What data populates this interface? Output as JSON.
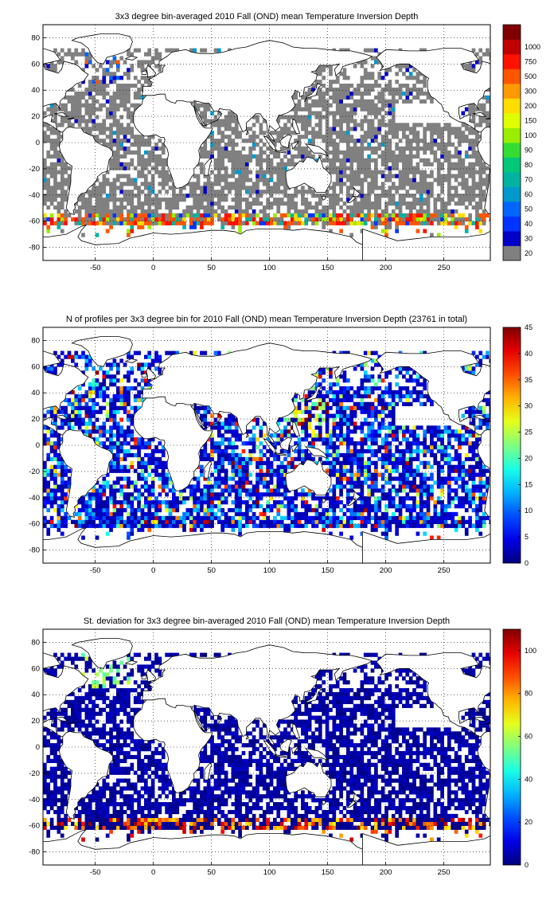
{
  "figure": {
    "panels": [
      {
        "id": "depth",
        "title": "3x3 degree bin-averaged 2010 Fall (OND) mean Temperature Inversion Depth",
        "colorbar": {
          "type": "discrete",
          "labels": [
            "20",
            "30",
            "40",
            "50",
            "60",
            "70",
            "80",
            "90",
            "100",
            "150",
            "200",
            "300",
            "500",
            "750",
            "1000"
          ],
          "colors": [
            "#808080",
            "#0000c8",
            "#0033ff",
            "#0066ff",
            "#0099cc",
            "#00b3a0",
            "#00c878",
            "#33dd33",
            "#99ee00",
            "#ddff00",
            "#ffdd00",
            "#ff9900",
            "#ff5500",
            "#ff1100",
            "#c00000",
            "#800000"
          ]
        }
      },
      {
        "id": "nprofiles",
        "title": "N of profiles per 3x3 degree bin for 2010 Fall (OND) mean Temperature Inversion Depth  (23761 in total)",
        "colorbar": {
          "type": "continuous",
          "min": 0,
          "max": 45,
          "labels": [
            "0",
            "5",
            "10",
            "15",
            "20",
            "25",
            "30",
            "35",
            "40",
            "45"
          ]
        }
      },
      {
        "id": "stdev",
        "title": "St. deviation for 3x3 degree bin-averaged 2010 Fall (OND) mean Temperature Inversion Depth",
        "colorbar": {
          "type": "continuous",
          "min": 0,
          "max": 110,
          "labels": [
            "0",
            "20",
            "40",
            "60",
            "80",
            "100"
          ]
        }
      }
    ],
    "x_ticks": [
      "-50",
      "0",
      "50",
      "100",
      "150",
      "200",
      "250"
    ],
    "y_ticks": [
      "80",
      "60",
      "40",
      "20",
      "0",
      "-20",
      "-40",
      "-60",
      "-80"
    ],
    "x_range": [
      -95,
      290
    ],
    "y_range": [
      -90,
      90
    ],
    "grid": "dotted",
    "land_color": "#ffffff",
    "coast_color": "#000000"
  }
}
